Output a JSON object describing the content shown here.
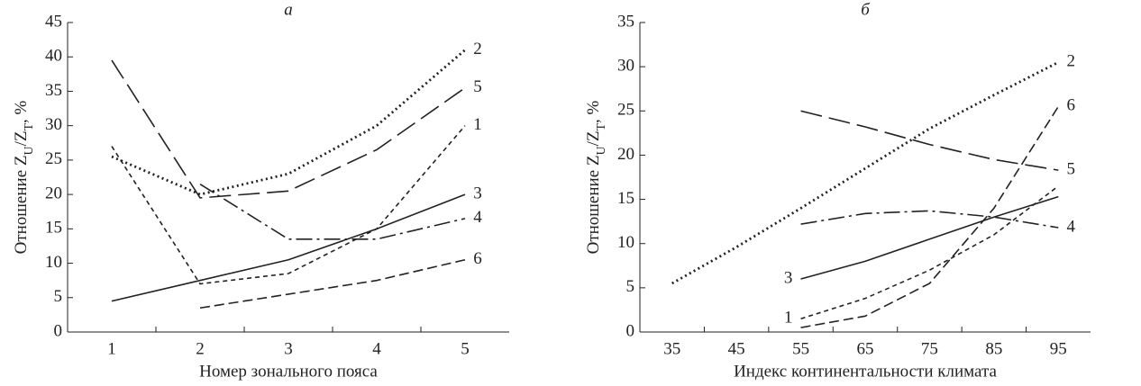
{
  "chart_data": [
    {
      "type": "line",
      "title": "а",
      "xlabel": "Номер зонального пояса",
      "ylabel": [
        "Отношение Z",
        "U",
        "/Z",
        "T",
        ", %"
      ],
      "categories": [
        "1",
        "2",
        "3",
        "4",
        "5"
      ],
      "ylim": [
        0,
        45
      ],
      "yticks": [
        0,
        5,
        10,
        15,
        20,
        25,
        30,
        35,
        40,
        45
      ],
      "grid": false,
      "series": [
        {
          "name": "1",
          "color": "#222222",
          "linestyle": "short-dash",
          "values": [
            27,
            7,
            8.5,
            15,
            30
          ]
        },
        {
          "name": "2",
          "color": "#222222",
          "linestyle": "dotted",
          "values": [
            25.5,
            20,
            23,
            30,
            41
          ]
        },
        {
          "name": "3",
          "color": "#222222",
          "linestyle": "solid",
          "values": [
            4.5,
            7.5,
            10.5,
            15,
            20
          ]
        },
        {
          "name": "4",
          "color": "#222222",
          "linestyle": "dash-dot",
          "values": [
            null,
            21.5,
            13.5,
            13.5,
            16.5
          ]
        },
        {
          "name": "5",
          "color": "#222222",
          "linestyle": "long-dash",
          "values": [
            39.5,
            19.5,
            20.5,
            26.5,
            35.5
          ]
        },
        {
          "name": "6",
          "color": "#222222",
          "linestyle": "dashed",
          "values": [
            null,
            3.5,
            5.5,
            7.5,
            10.5
          ]
        }
      ]
    },
    {
      "type": "line",
      "title": "б",
      "xlabel": "Индекс континентальности климата",
      "ylabel": [
        "Отношение Z",
        "U",
        "/Z",
        "T",
        ", %"
      ],
      "categories": [
        "35",
        "45",
        "55",
        "65",
        "75",
        "85",
        "95"
      ],
      "ylim": [
        0,
        35
      ],
      "yticks": [
        0,
        5,
        10,
        15,
        20,
        25,
        30,
        35
      ],
      "grid": false,
      "series": [
        {
          "name": "1",
          "color": "#222222",
          "linestyle": "short-dash",
          "values": [
            null,
            null,
            1.5,
            3.8,
            7,
            11,
            16.5
          ]
        },
        {
          "name": "2",
          "color": "#222222",
          "linestyle": "dotted",
          "values": [
            5.5,
            9.6,
            14,
            18.5,
            23,
            26.8,
            30.5
          ]
        },
        {
          "name": "3",
          "color": "#222222",
          "linestyle": "solid",
          "values": [
            null,
            null,
            6,
            8,
            10.5,
            13,
            15.3
          ]
        },
        {
          "name": "4",
          "color": "#222222",
          "linestyle": "dash-dot",
          "values": [
            null,
            null,
            12.2,
            13.4,
            13.7,
            13,
            11.8
          ]
        },
        {
          "name": "5",
          "color": "#222222",
          "linestyle": "long-dash",
          "values": [
            null,
            null,
            25,
            23.2,
            21.2,
            19.5,
            18.3
          ]
        },
        {
          "name": "6",
          "color": "#222222",
          "linestyle": "dashed",
          "values": [
            null,
            null,
            0.5,
            1.8,
            5.5,
            14,
            25.5
          ]
        }
      ]
    }
  ]
}
